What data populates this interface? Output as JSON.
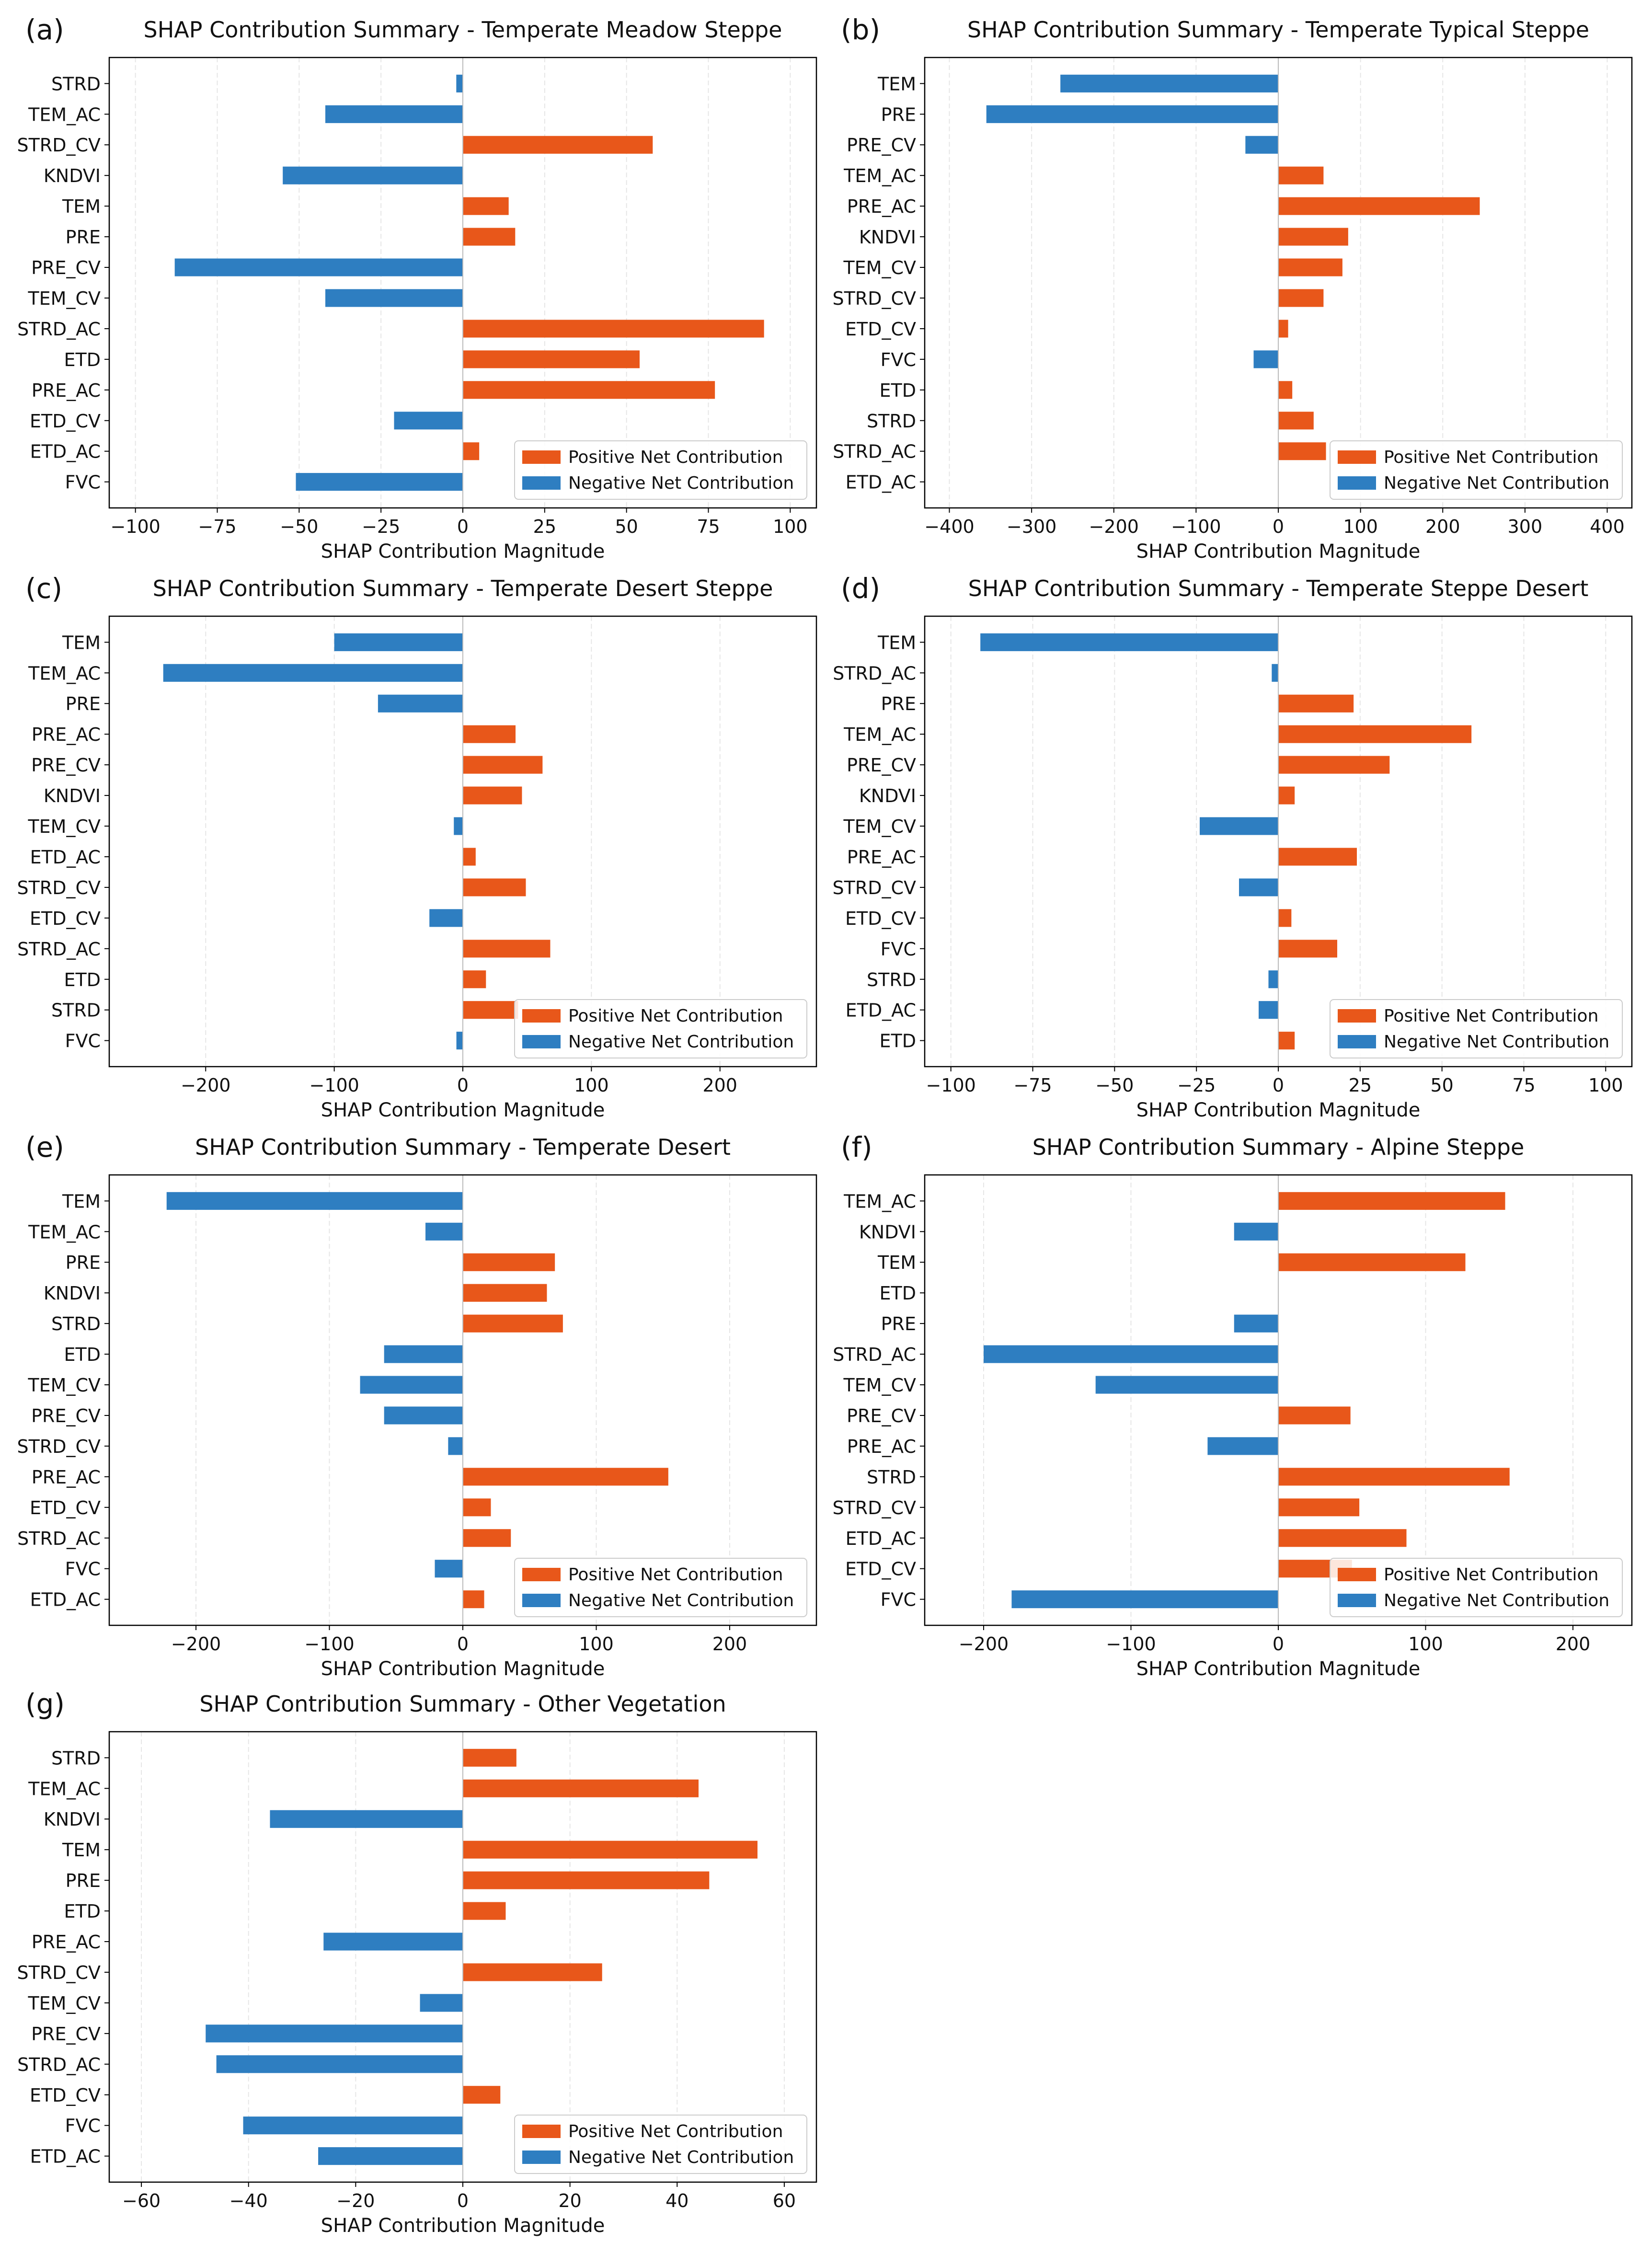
{
  "figure": {
    "xlabel": "SHAP Contribution Magnitude",
    "legend": {
      "positive_label": "Positive Net Contribution",
      "negative_label": "Negative Net Contribution",
      "position": "lower-right"
    },
    "colors": {
      "positive": "#e8571a",
      "negative": "#2e7ec1",
      "axis": "#000000",
      "grid": "#e6e6e6"
    }
  },
  "chart_data": [
    {
      "panel": "(a)",
      "type": "bar",
      "title": "SHAP Contribution Summary - Temperate Meadow Steppe",
      "xlabel": "SHAP Contribution Magnitude",
      "xlim": [
        -108,
        108
      ],
      "xticks": [
        -100,
        -75,
        -50,
        -25,
        0,
        25,
        50,
        75,
        100
      ],
      "xtick_labels": [
        "−100",
        "−75",
        "−50",
        "−25",
        "0",
        "25",
        "50",
        "75",
        "100"
      ],
      "categories": [
        "STRD",
        "TEM_AC",
        "STRD_CV",
        "KNDVI",
        "TEM",
        "PRE",
        "PRE_CV",
        "TEM_CV",
        "STRD_AC",
        "ETD",
        "PRE_AC",
        "ETD_CV",
        "ETD_AC",
        "FVC"
      ],
      "values": [
        -2,
        -42,
        58,
        -55,
        14,
        16,
        -88,
        -42,
        92,
        54,
        77,
        -21,
        5,
        -51
      ]
    },
    {
      "panel": "(b)",
      "type": "bar",
      "title": "SHAP Contribution Summary - Temperate Typical Steppe",
      "xlabel": "SHAP Contribution Magnitude",
      "xlim": [
        -430,
        430
      ],
      "xticks": [
        -400,
        -300,
        -200,
        -100,
        0,
        100,
        200,
        300,
        400
      ],
      "xtick_labels": [
        "−400",
        "−300",
        "−200",
        "−100",
        "0",
        "100",
        "200",
        "300",
        "400"
      ],
      "categories": [
        "TEM",
        "PRE",
        "PRE_CV",
        "TEM_AC",
        "PRE_AC",
        "KNDVI",
        "TEM_CV",
        "STRD_CV",
        "ETD_CV",
        "FVC",
        "ETD",
        "STRD",
        "STRD_AC",
        "ETD_AC"
      ],
      "values": [
        -265,
        -355,
        -40,
        55,
        245,
        85,
        78,
        55,
        12,
        -30,
        17,
        43,
        58,
        0
      ]
    },
    {
      "panel": "(c)",
      "type": "bar",
      "title": "SHAP Contribution Summary - Temperate Desert Steppe",
      "xlabel": "SHAP Contribution Magnitude",
      "xlim": [
        -275,
        275
      ],
      "xticks": [
        -200,
        -100,
        0,
        100,
        200
      ],
      "xtick_labels": [
        "−200",
        "−100",
        "0",
        "100",
        "200"
      ],
      "categories": [
        "TEM",
        "TEM_AC",
        "PRE",
        "PRE_AC",
        "PRE_CV",
        "KNDVI",
        "TEM_CV",
        "ETD_AC",
        "STRD_CV",
        "ETD_CV",
        "STRD_AC",
        "ETD",
        "STRD",
        "FVC"
      ],
      "values": [
        -100,
        -233,
        -66,
        41,
        62,
        46,
        -7,
        10,
        49,
        -26,
        68,
        18,
        43,
        -5
      ]
    },
    {
      "panel": "(d)",
      "type": "bar",
      "title": "SHAP Contribution Summary - Temperate Steppe Desert",
      "xlabel": "SHAP Contribution Magnitude",
      "xlim": [
        -108,
        108
      ],
      "xticks": [
        -100,
        -75,
        -50,
        -25,
        0,
        25,
        50,
        75,
        100
      ],
      "xtick_labels": [
        "−100",
        "−75",
        "−50",
        "−25",
        "0",
        "25",
        "50",
        "75",
        "100"
      ],
      "categories": [
        "TEM",
        "STRD_AC",
        "PRE",
        "TEM_AC",
        "PRE_CV",
        "KNDVI",
        "TEM_CV",
        "PRE_AC",
        "STRD_CV",
        "ETD_CV",
        "FVC",
        "STRD",
        "ETD_AC",
        "ETD"
      ],
      "values": [
        -91,
        -2,
        23,
        59,
        34,
        5,
        -24,
        24,
        -12,
        4,
        18,
        -3,
        -6,
        5
      ]
    },
    {
      "panel": "(e)",
      "type": "bar",
      "title": "SHAP Contribution Summary - Temperate Desert",
      "xlabel": "SHAP Contribution Magnitude",
      "xlim": [
        -265,
        265
      ],
      "xticks": [
        -200,
        -100,
        0,
        100,
        200
      ],
      "xtick_labels": [
        "−200",
        "−100",
        "0",
        "100",
        "200"
      ],
      "categories": [
        "TEM",
        "TEM_AC",
        "PRE",
        "KNDVI",
        "STRD",
        "ETD",
        "TEM_CV",
        "PRE_CV",
        "STRD_CV",
        "PRE_AC",
        "ETD_CV",
        "STRD_AC",
        "FVC",
        "ETD_AC"
      ],
      "values": [
        -222,
        -28,
        69,
        63,
        75,
        -59,
        -77,
        -59,
        -11,
        154,
        21,
        36,
        -21,
        16
      ]
    },
    {
      "panel": "(f)",
      "type": "bar",
      "title": "SHAP Contribution Summary - Alpine Steppe",
      "xlabel": "SHAP Contribution Magnitude",
      "xlim": [
        -240,
        240
      ],
      "xticks": [
        -200,
        -100,
        0,
        100,
        200
      ],
      "xtick_labels": [
        "−200",
        "−100",
        "0",
        "100",
        "200"
      ],
      "categories": [
        "TEM_AC",
        "KNDVI",
        "TEM",
        "ETD",
        "PRE",
        "STRD_AC",
        "TEM_CV",
        "PRE_CV",
        "PRE_AC",
        "STRD",
        "STRD_CV",
        "ETD_AC",
        "ETD_CV",
        "FVC"
      ],
      "values": [
        154,
        -30,
        127,
        0,
        -30,
        -200,
        -124,
        49,
        -48,
        157,
        55,
        87,
        50,
        -181
      ]
    },
    {
      "panel": "(g)",
      "type": "bar",
      "title": "SHAP Contribution Summary - Other Vegetation",
      "xlabel": "SHAP Contribution Magnitude",
      "xlim": [
        -66,
        66
      ],
      "xticks": [
        -60,
        -40,
        -20,
        0,
        20,
        40,
        60
      ],
      "xtick_labels": [
        "−60",
        "−40",
        "−20",
        "0",
        "20",
        "40",
        "60"
      ],
      "categories": [
        "STRD",
        "TEM_AC",
        "KNDVI",
        "TEM",
        "PRE",
        "ETD",
        "PRE_AC",
        "STRD_CV",
        "TEM_CV",
        "PRE_CV",
        "STRD_AC",
        "ETD_CV",
        "FVC",
        "ETD_AC"
      ],
      "values": [
        10,
        44,
        -36,
        55,
        46,
        8,
        -26,
        26,
        -8,
        -48,
        -46,
        7,
        -41,
        -27
      ]
    }
  ]
}
